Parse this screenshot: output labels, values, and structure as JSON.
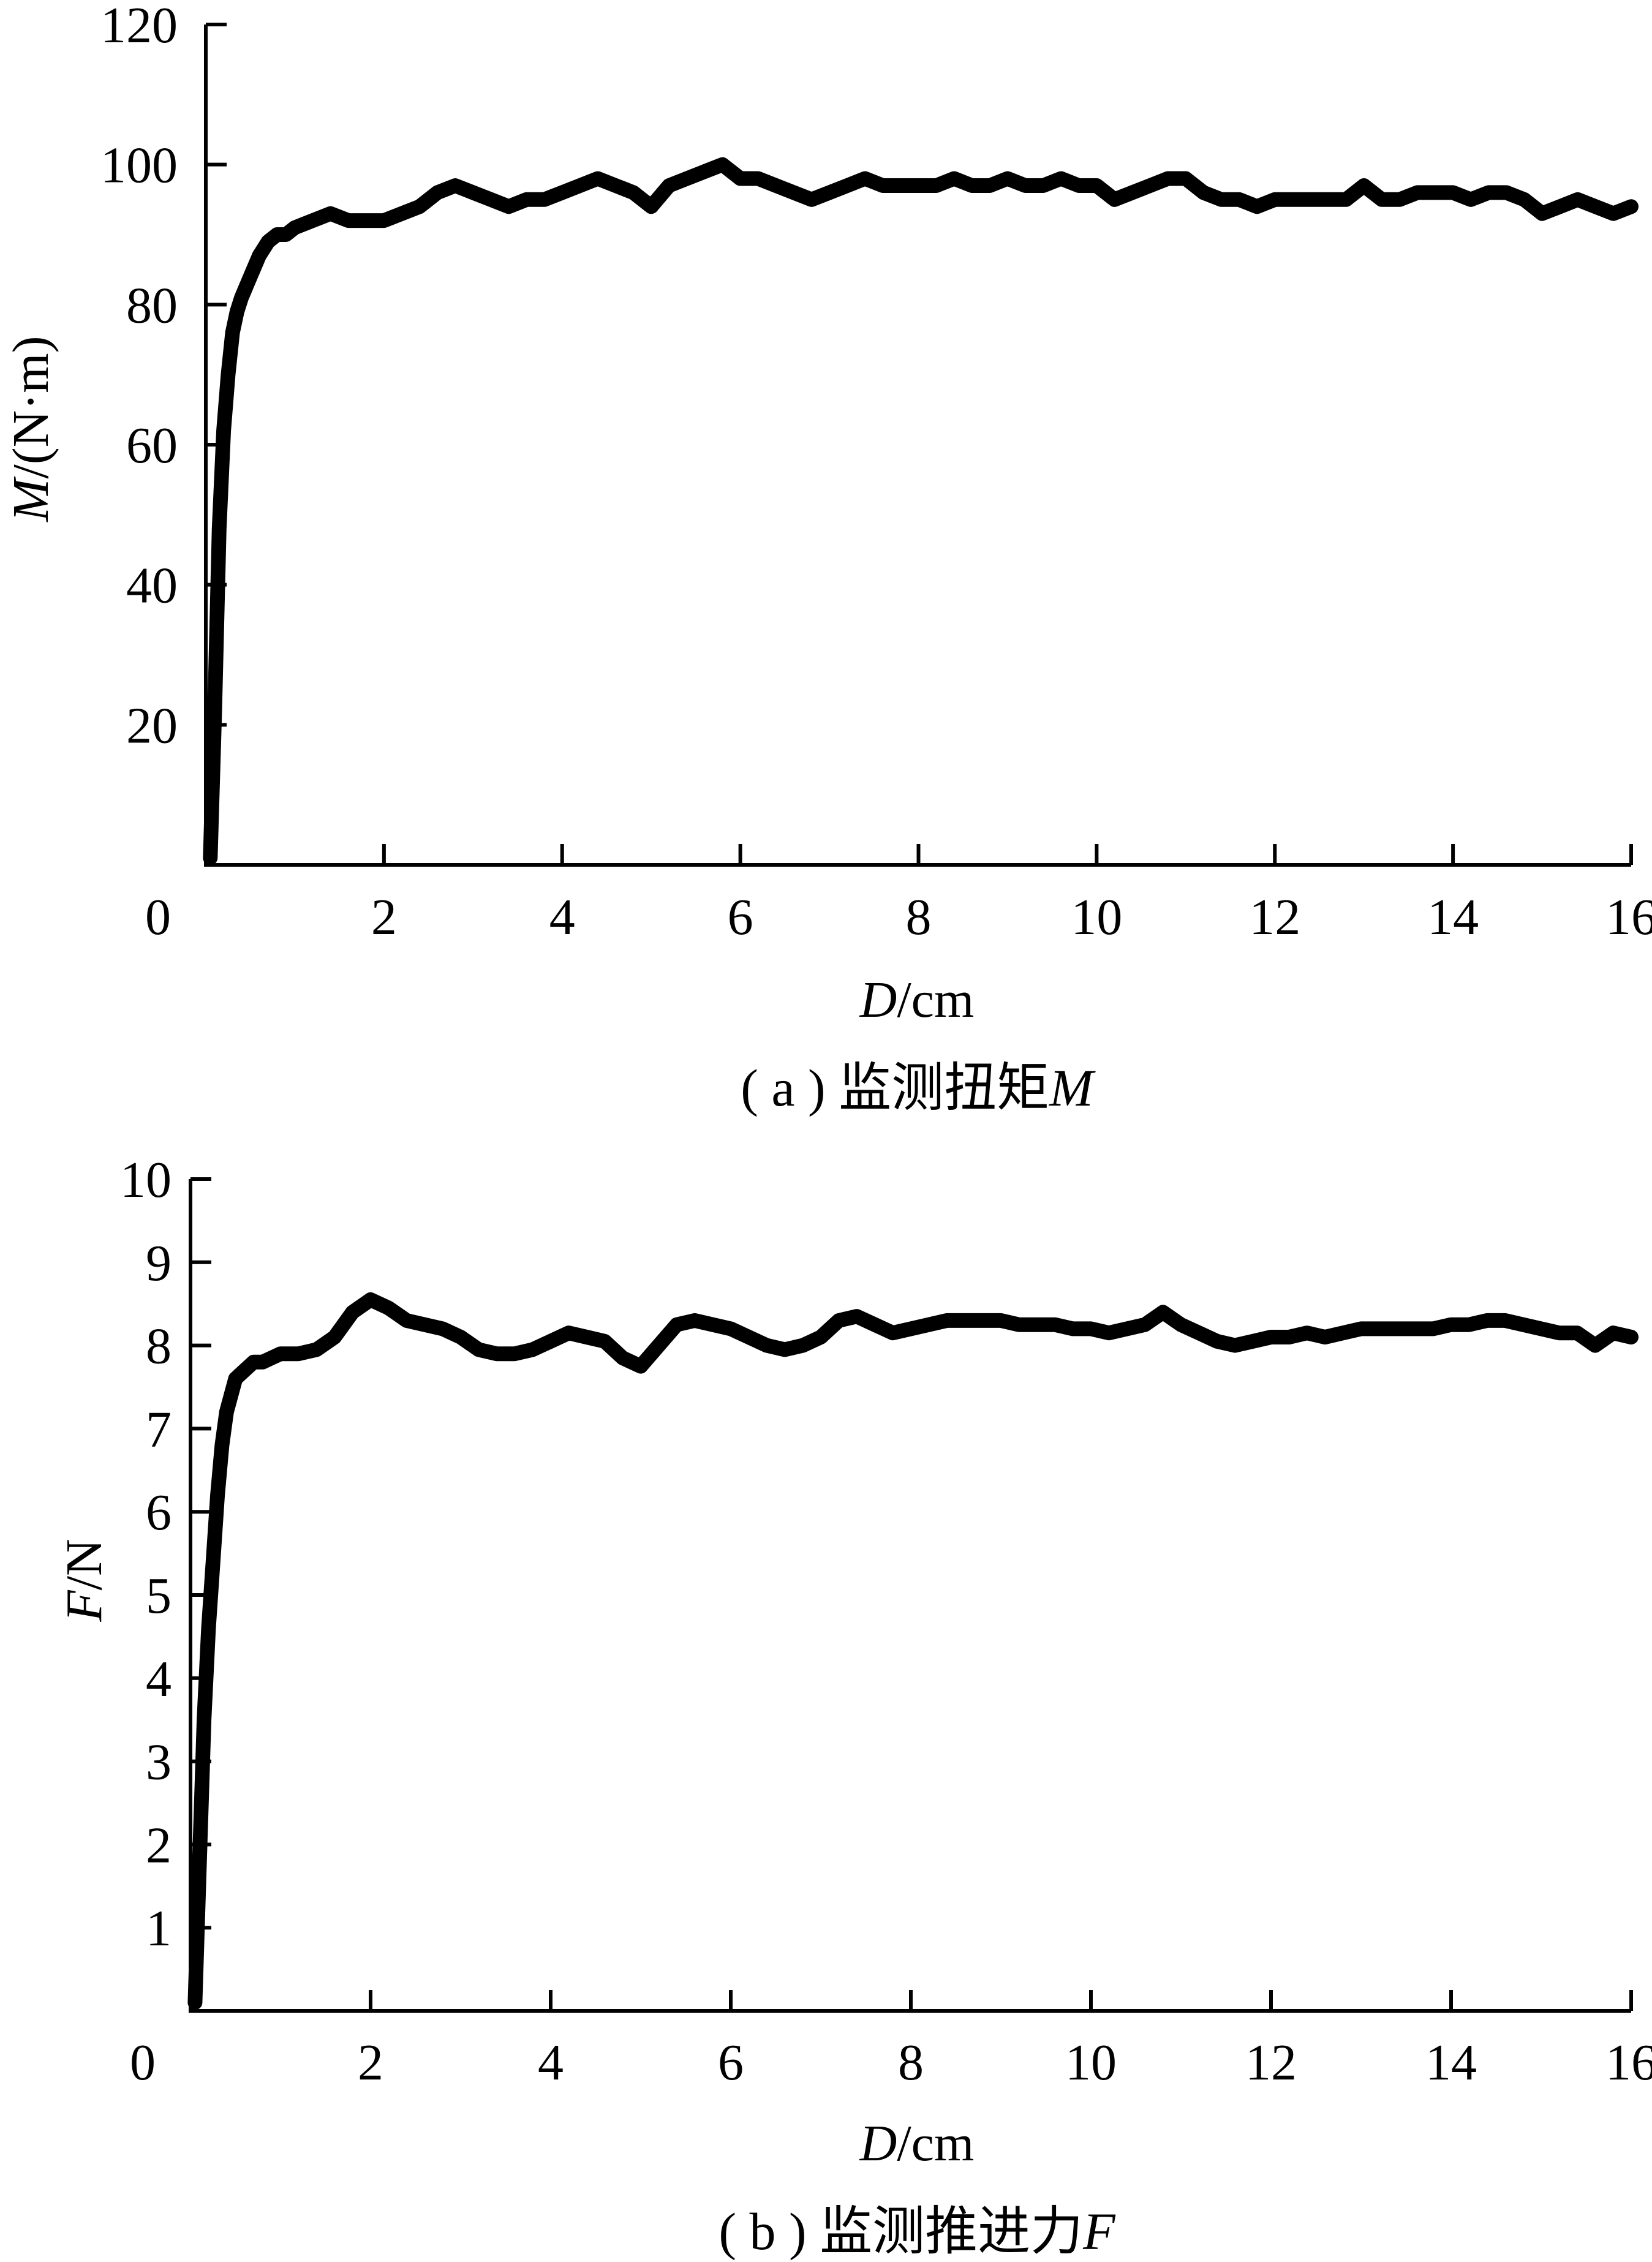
{
  "chart_data": [
    {
      "type": "line",
      "panel": "a",
      "caption": {
        "prefix": "( a ) 监测扭矩",
        "symbol": "M"
      },
      "xlabel": {
        "symbol": "D",
        "unit": "/cm"
      },
      "ylabel": {
        "symbol": "M",
        "unit": "/(N·m)"
      },
      "xlim": [
        0,
        16
      ],
      "ylim": [
        0,
        120
      ],
      "xticks": [
        "0",
        "2",
        "4",
        "6",
        "8",
        "10",
        "12",
        "14",
        "16"
      ],
      "yticks": [
        "20",
        "40",
        "60",
        "80",
        "100",
        "120"
      ],
      "series": [
        {
          "color": "#000000",
          "x": [
            0.05,
            0.1,
            0.15,
            0.2,
            0.25,
            0.3,
            0.35,
            0.4,
            0.5,
            0.6,
            0.7,
            0.8,
            0.9,
            1.0,
            1.2,
            1.4,
            1.6,
            1.8,
            2.0,
            2.2,
            2.4,
            2.6,
            2.8,
            3.0,
            3.2,
            3.4,
            3.6,
            3.8,
            4.0,
            4.2,
            4.4,
            4.6,
            4.8,
            5.0,
            5.2,
            5.4,
            5.6,
            5.8,
            6.0,
            6.2,
            6.4,
            6.6,
            6.8,
            7.0,
            7.2,
            7.4,
            7.6,
            7.8,
            8.0,
            8.2,
            8.4,
            8.6,
            8.8,
            9.0,
            9.2,
            9.4,
            9.6,
            9.8,
            10.0,
            10.2,
            10.4,
            10.6,
            10.8,
            11.0,
            11.2,
            11.4,
            11.6,
            11.8,
            12.0,
            12.2,
            12.4,
            12.6,
            12.8,
            13.0,
            13.2,
            13.4,
            13.6,
            13.8,
            14.0,
            14.2,
            14.4,
            14.6,
            14.8,
            15.0,
            15.2,
            15.4,
            15.6,
            15.8,
            16.0
          ],
          "y": [
            1,
            22,
            48,
            62,
            70,
            76,
            79,
            81,
            84,
            87,
            89,
            90,
            90,
            91,
            92,
            93,
            92,
            92,
            92,
            93,
            94,
            96,
            97,
            96,
            95,
            94,
            95,
            95,
            96,
            97,
            98,
            97,
            96,
            94,
            97,
            98,
            99,
            100,
            98,
            98,
            97,
            96,
            95,
            96,
            97,
            98,
            97,
            97,
            97,
            97,
            98,
            97,
            97,
            98,
            97,
            97,
            98,
            97,
            97,
            95,
            96,
            97,
            98,
            98,
            96,
            95,
            95,
            94,
            95,
            95,
            95,
            95,
            95,
            97,
            95,
            95,
            96,
            96,
            96,
            95,
            96,
            96,
            95,
            93,
            94,
            95,
            94,
            93,
            94
          ]
        }
      ]
    },
    {
      "type": "line",
      "panel": "b",
      "caption": {
        "prefix": "( b ) 监测推进力",
        "symbol": "F"
      },
      "xlabel": {
        "symbol": "D",
        "unit": "/cm"
      },
      "ylabel": {
        "symbol": "F",
        "unit": "/N"
      },
      "xlim": [
        0,
        16
      ],
      "ylim": [
        0,
        10
      ],
      "xticks": [
        "0",
        "2",
        "4",
        "6",
        "8",
        "10",
        "12",
        "14",
        "16"
      ],
      "yticks": [
        "1",
        "2",
        "3",
        "4",
        "5",
        "6",
        "7",
        "8",
        "9",
        "10"
      ],
      "series": [
        {
          "color": "#000000",
          "x": [
            0.05,
            0.1,
            0.15,
            0.2,
            0.25,
            0.3,
            0.35,
            0.4,
            0.5,
            0.6,
            0.7,
            0.8,
            0.9,
            1.0,
            1.2,
            1.4,
            1.6,
            1.8,
            2.0,
            2.2,
            2.4,
            2.6,
            2.8,
            3.0,
            3.2,
            3.4,
            3.6,
            3.8,
            4.0,
            4.2,
            4.4,
            4.6,
            4.8,
            5.0,
            5.2,
            5.4,
            5.6,
            5.8,
            6.0,
            6.2,
            6.4,
            6.6,
            6.8,
            7.0,
            7.2,
            7.4,
            7.6,
            7.8,
            8.0,
            8.2,
            8.4,
            8.6,
            8.8,
            9.0,
            9.2,
            9.4,
            9.6,
            9.8,
            10.0,
            10.2,
            10.4,
            10.6,
            10.8,
            11.0,
            11.2,
            11.4,
            11.6,
            11.8,
            12.0,
            12.2,
            12.4,
            12.6,
            12.8,
            13.0,
            13.2,
            13.4,
            13.6,
            13.8,
            14.0,
            14.2,
            14.4,
            14.6,
            14.8,
            15.0,
            15.2,
            15.4,
            15.6,
            15.8,
            16.0
          ],
          "y": [
            0.1,
            1.8,
            3.5,
            4.6,
            5.4,
            6.2,
            6.8,
            7.2,
            7.6,
            7.7,
            7.8,
            7.8,
            7.85,
            7.9,
            7.9,
            7.95,
            8.1,
            8.4,
            8.55,
            8.45,
            8.3,
            8.25,
            8.2,
            8.1,
            7.95,
            7.9,
            7.9,
            7.95,
            8.05,
            8.15,
            8.1,
            8.05,
            7.85,
            7.75,
            8.0,
            8.25,
            8.3,
            8.25,
            8.2,
            8.1,
            8.0,
            7.95,
            8.0,
            8.1,
            8.3,
            8.35,
            8.25,
            8.15,
            8.2,
            8.25,
            8.3,
            8.3,
            8.3,
            8.3,
            8.25,
            8.25,
            8.25,
            8.2,
            8.2,
            8.15,
            8.2,
            8.25,
            8.4,
            8.25,
            8.15,
            8.05,
            8.0,
            8.05,
            8.1,
            8.1,
            8.15,
            8.1,
            8.15,
            8.2,
            8.2,
            8.2,
            8.2,
            8.2,
            8.25,
            8.25,
            8.3,
            8.3,
            8.25,
            8.2,
            8.15,
            8.15,
            8.0,
            8.15,
            8.1
          ]
        }
      ]
    }
  ]
}
